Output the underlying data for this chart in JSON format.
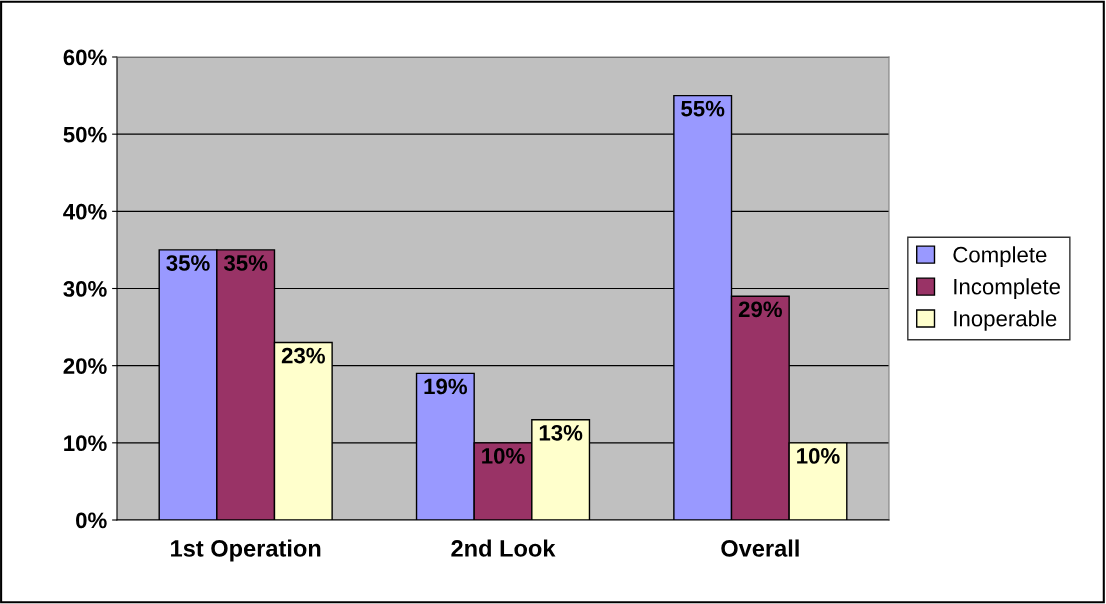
{
  "chart_data": {
    "type": "bar",
    "categories": [
      "1st Operation",
      "2nd Look",
      "Overall"
    ],
    "series": [
      {
        "name": "Complete",
        "color": "#9999ff",
        "values": [
          35,
          19,
          55
        ],
        "value_labels": [
          "35%",
          "19%",
          "55%"
        ]
      },
      {
        "name": "Incomplete",
        "color": "#993366",
        "values": [
          35,
          10,
          29
        ],
        "value_labels": [
          "35%",
          "10%",
          "29%"
        ]
      },
      {
        "name": "Inoperable",
        "color": "#ffffcc",
        "values": [
          23,
          13,
          10
        ],
        "value_labels": [
          "23%",
          "13%",
          "10%"
        ]
      }
    ],
    "ylim": [
      0,
      60
    ],
    "yticks": [
      {
        "value": 0,
        "label": "0%"
      },
      {
        "value": 10,
        "label": "10%"
      },
      {
        "value": 20,
        "label": "20%"
      },
      {
        "value": 30,
        "label": "30%"
      },
      {
        "value": 40,
        "label": "40%"
      },
      {
        "value": 50,
        "label": "50%"
      },
      {
        "value": 60,
        "label": "60%"
      }
    ],
    "grid": "y",
    "legend": "right"
  }
}
